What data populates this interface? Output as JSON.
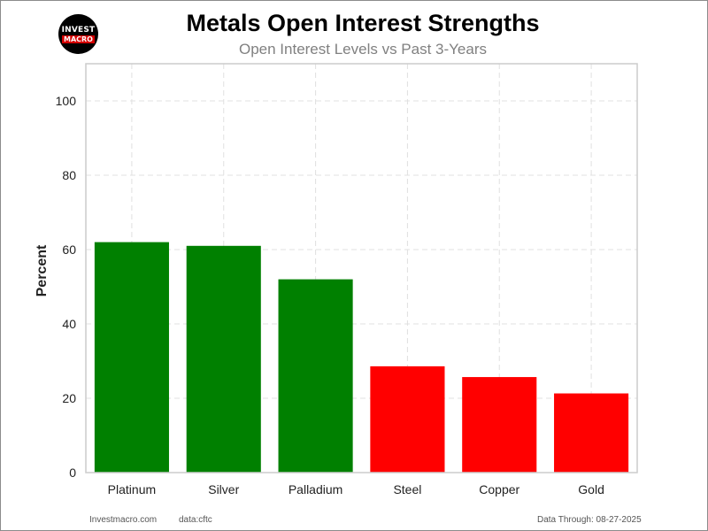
{
  "header": {
    "logo_top": "INVEST",
    "logo_bottom": "MACRO",
    "title": "Metals Open Interest Strengths",
    "subtitle": "Open Interest Levels vs Past 3-Years"
  },
  "footer": {
    "site": "Investmacro.com",
    "source": "data:cftc",
    "date": "Data Through: 08-27-2025"
  },
  "colors": {
    "positive": "#008000",
    "negative": "#ff0000"
  },
  "chart_data": {
    "type": "bar",
    "title": "Metals Open Interest Strengths",
    "subtitle": "Open Interest Levels vs Past 3-Years",
    "xlabel": "",
    "ylabel": "Percent",
    "categories": [
      "Platinum",
      "Silver",
      "Palladium",
      "Steel",
      "Copper",
      "Gold"
    ],
    "values": [
      62,
      61,
      52,
      28.6,
      25.7,
      21.3
    ],
    "bar_colors": [
      "#008000",
      "#008000",
      "#008000",
      "#ff0000",
      "#ff0000",
      "#ff0000"
    ],
    "ylim": [
      0,
      110
    ],
    "yticks": [
      0,
      20,
      40,
      60,
      80,
      100
    ],
    "grid": true
  }
}
